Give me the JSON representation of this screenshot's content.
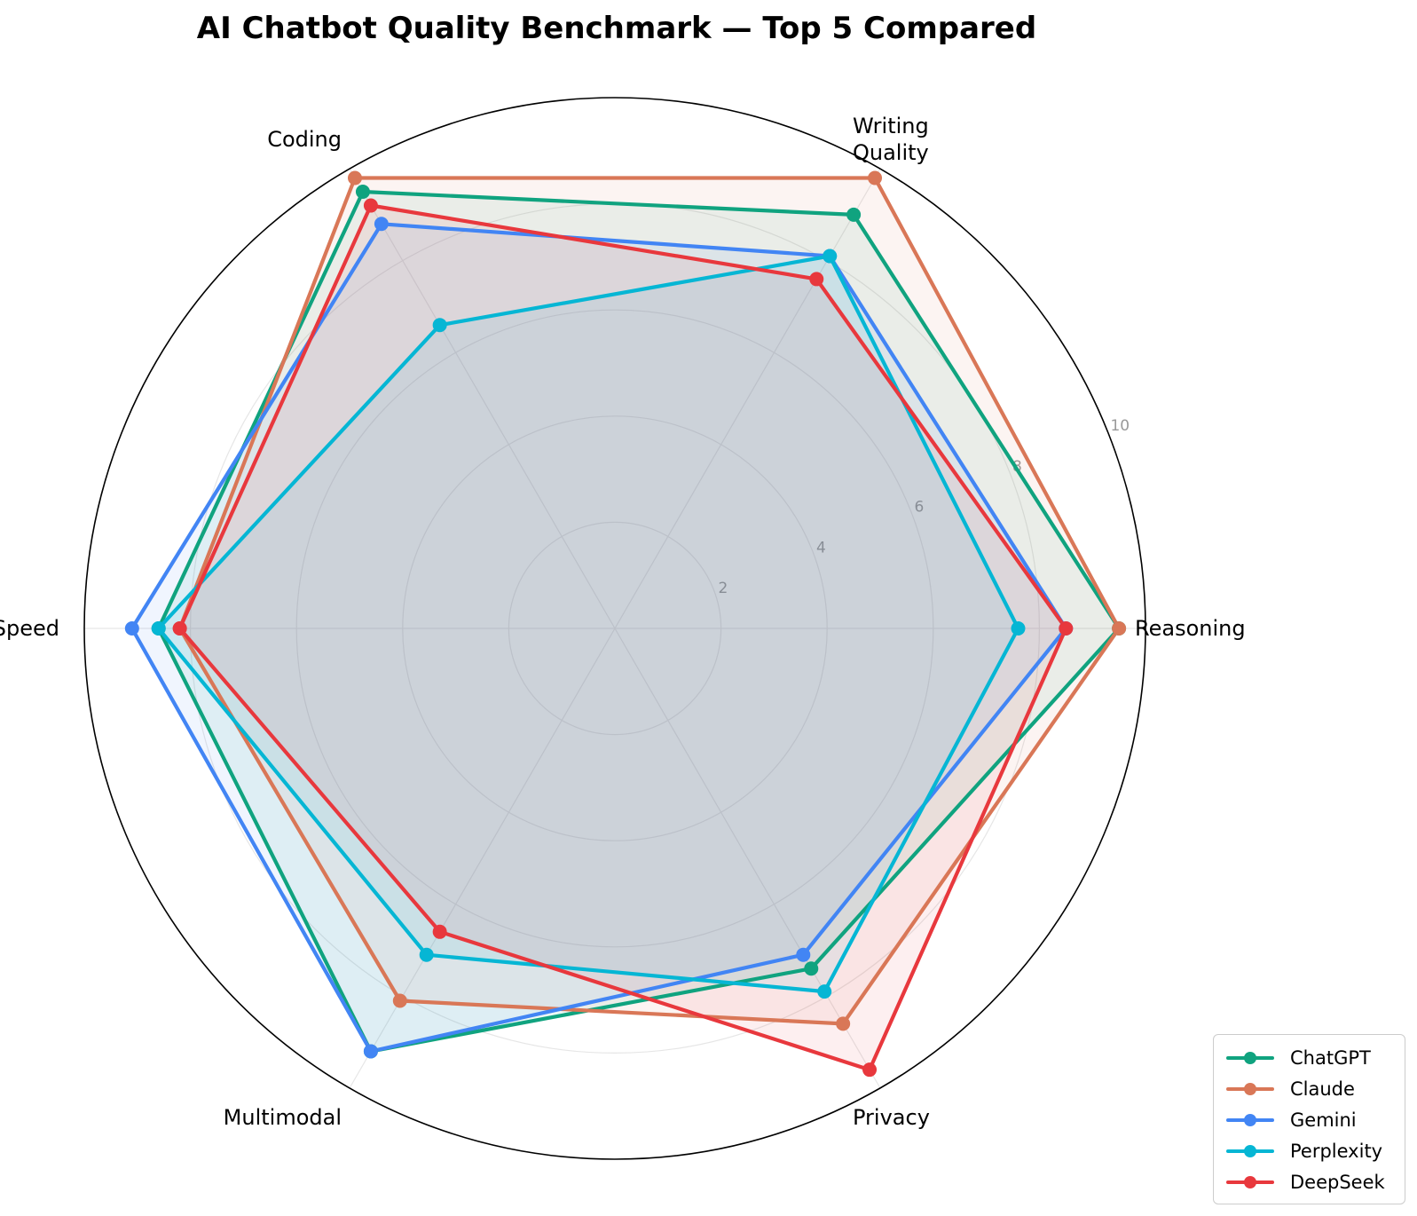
{
  "chart_data": {
    "type": "radar",
    "title": "AI Chatbot Quality Benchmark — Top 5 Compared",
    "axes": [
      "Reasoning",
      "Writing\nQuality",
      "Coding",
      "Speed",
      "Multimodal",
      "Privacy"
    ],
    "rlim": [
      0,
      10
    ],
    "r_ticks": [
      2,
      4,
      6,
      8,
      10
    ],
    "grid": true,
    "legend_position": "bottom-right",
    "series": [
      {
        "name": "ChatGPT",
        "color": "#10a37f",
        "values": [
          9.5,
          9.0,
          9.5,
          8.6,
          9.2,
          7.4
        ]
      },
      {
        "name": "Claude",
        "color": "#d97757",
        "values": [
          9.5,
          9.8,
          9.8,
          8.2,
          8.1,
          8.6
        ]
      },
      {
        "name": "Gemini",
        "color": "#4285f4",
        "values": [
          8.5,
          8.1,
          8.8,
          9.1,
          9.2,
          7.1
        ]
      },
      {
        "name": "Perplexity",
        "color": "#06b6d4",
        "values": [
          7.6,
          8.1,
          6.6,
          8.6,
          7.1,
          7.9
        ]
      },
      {
        "name": "DeepSeek",
        "color": "#e8383d",
        "values": [
          8.5,
          7.6,
          9.2,
          8.2,
          6.6,
          9.6
        ]
      }
    ]
  }
}
